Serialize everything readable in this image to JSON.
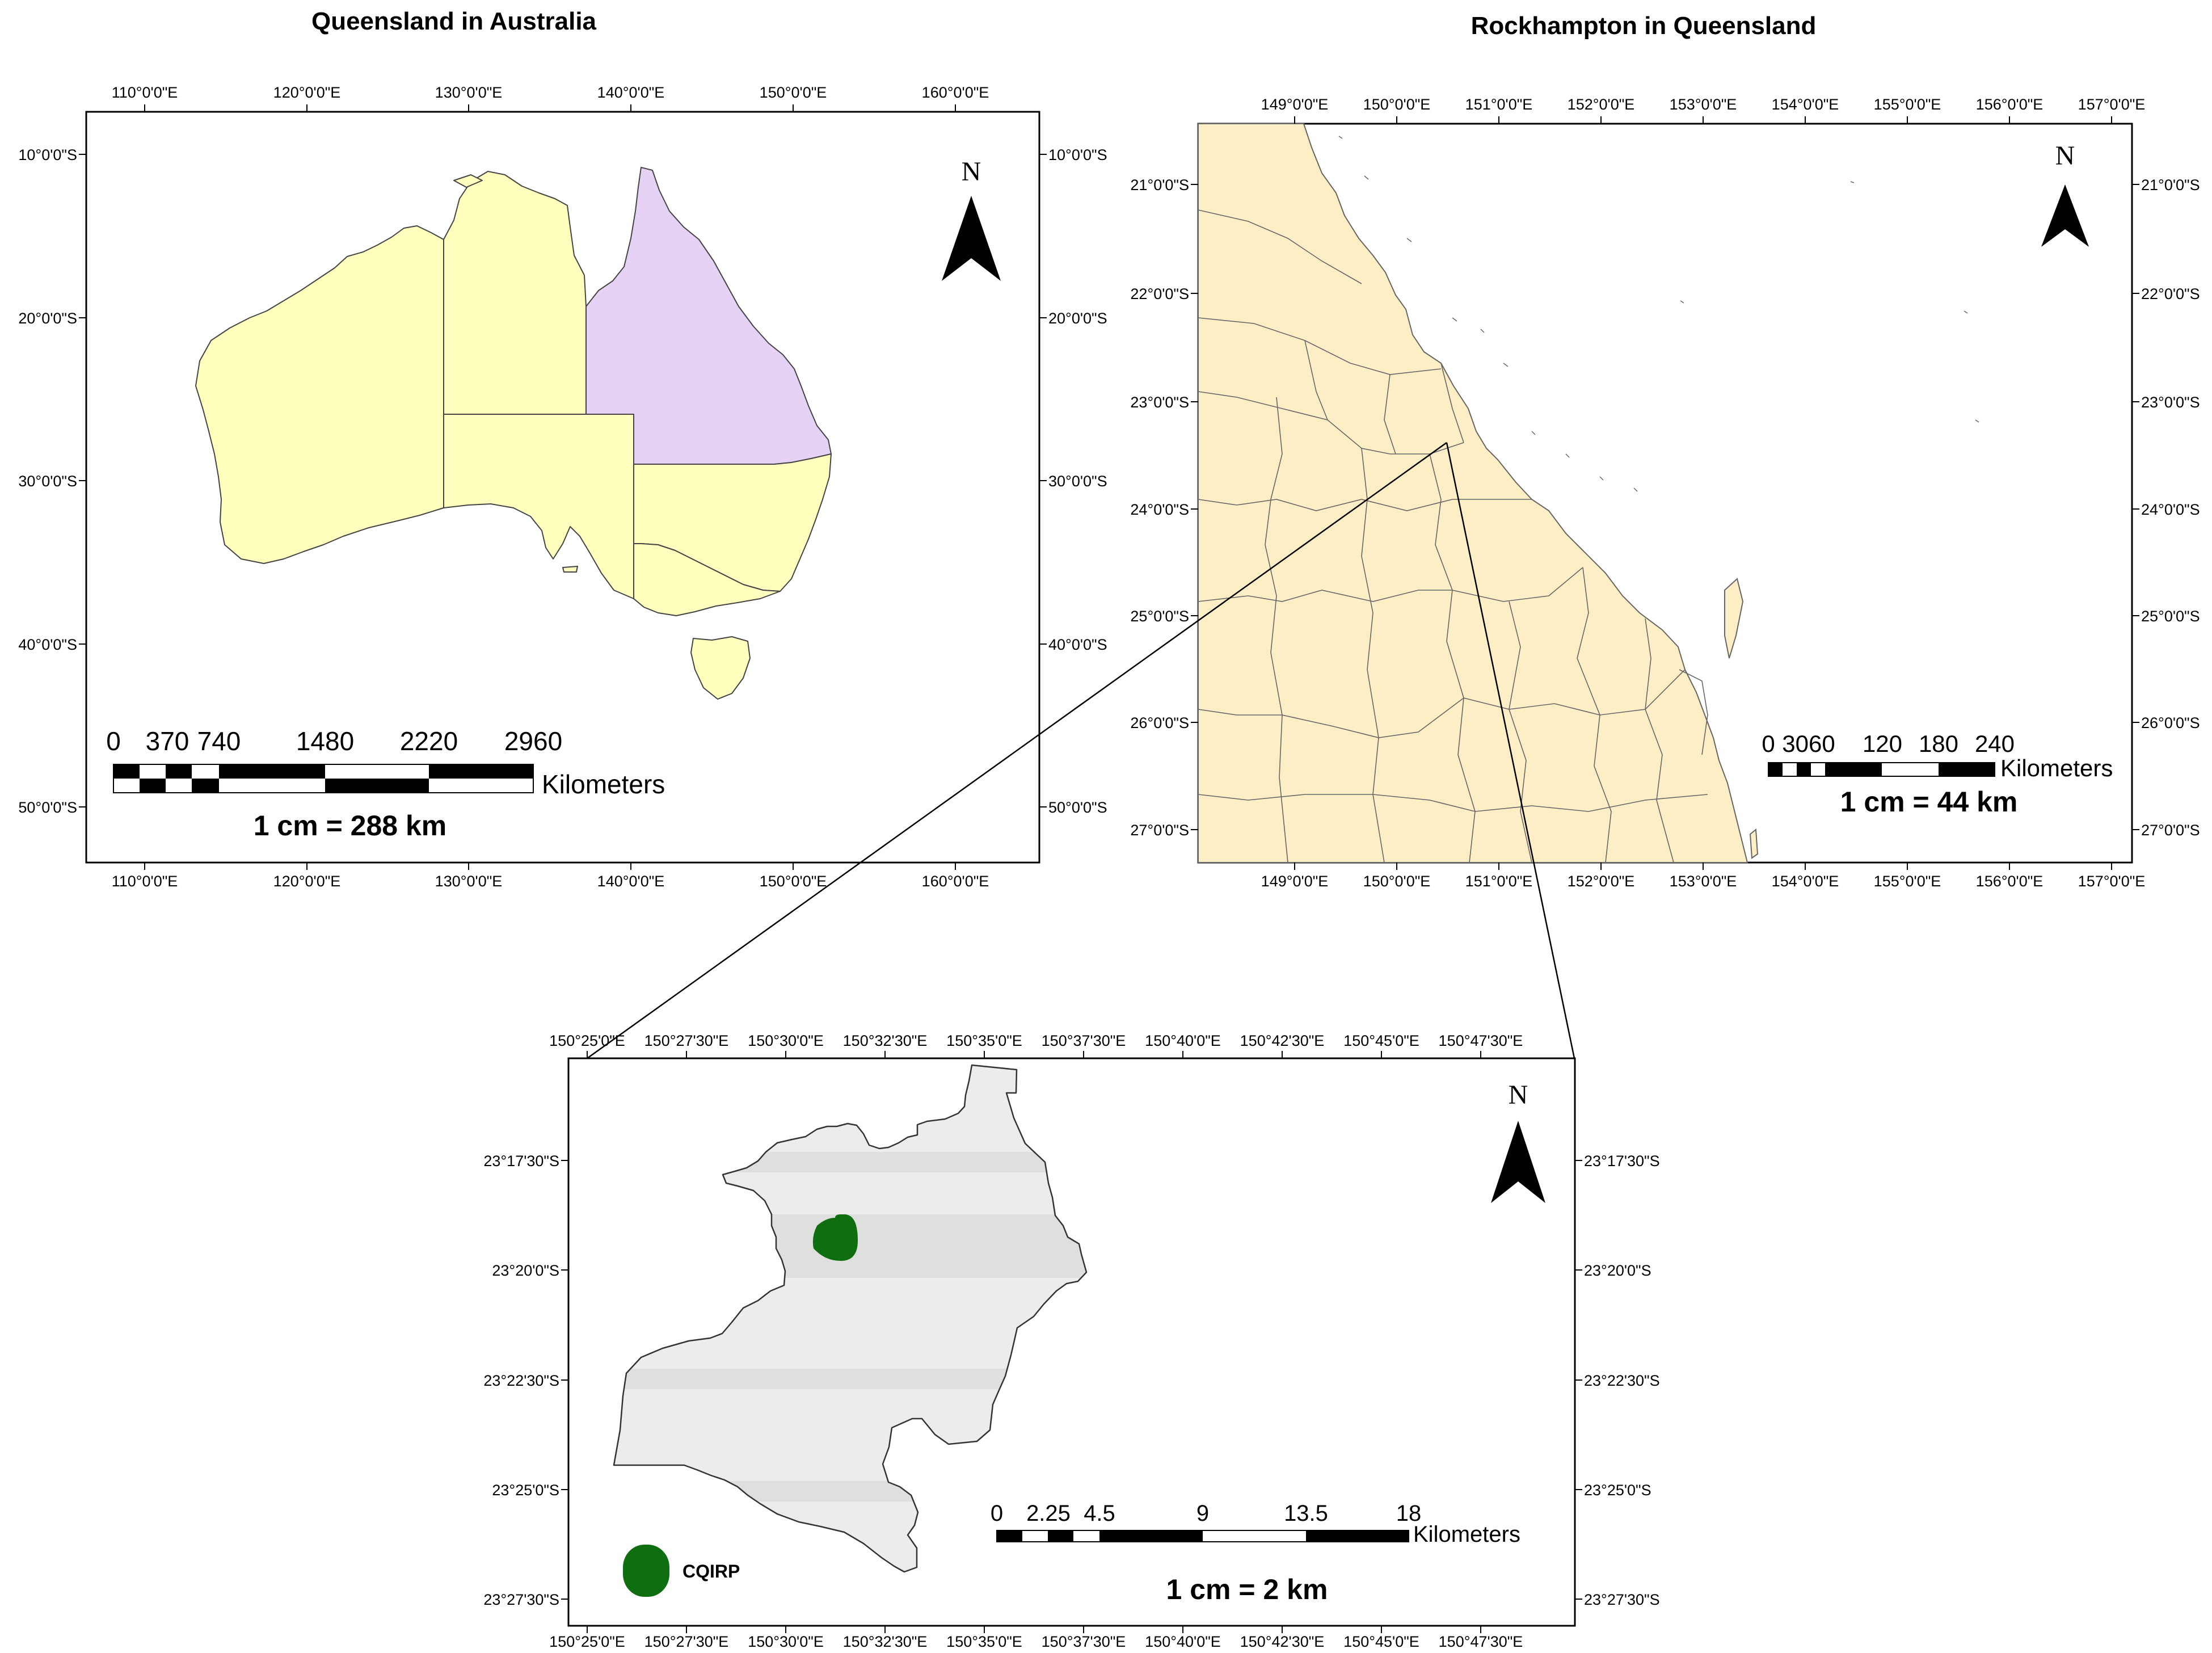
{
  "colors": {
    "australia_states": "#ffffbe",
    "queensland_highlight": "#e6d2f5",
    "queensland_lgas": "#fdeec6",
    "rockhampton_region": "#ececec",
    "rockhampton_band": "#dfdfdf",
    "cqirp_marker": "#0f6e0f",
    "frame": "#000000",
    "boundary": "#555555"
  },
  "map_australia": {
    "title": "Queensland in Australia",
    "lon_ticks": [
      "110°0'0\"E",
      "120°0'0\"E",
      "130°0'0\"E",
      "140°0'0\"E",
      "150°0'0\"E",
      "160°0'0\"E"
    ],
    "lat_ticks": [
      "10°0'0\"S",
      "20°0'0\"S",
      "30°0'0\"S",
      "40°0'0\"S",
      "50°0'0\"S"
    ],
    "north_label": "N",
    "scale_numbers": [
      "0",
      "370",
      "740",
      "1480",
      "2220",
      "2960"
    ],
    "scale_unit": "Kilometers",
    "scale_ratio": "1 cm = 288 km"
  },
  "map_queensland": {
    "title": "Rockhampton in Queensland",
    "lon_ticks": [
      "149°0'0\"E",
      "150°0'0\"E",
      "151°0'0\"E",
      "152°0'0\"E",
      "153°0'0\"E",
      "154°0'0\"E",
      "155°0'0\"E",
      "156°0'0\"E",
      "157°0'0\"E"
    ],
    "lat_ticks": [
      "21°0'0\"S",
      "22°0'0\"S",
      "23°0'0\"S",
      "24°0'0\"S",
      "25°0'0\"S",
      "26°0'0\"S",
      "27°0'0\"S"
    ],
    "north_label": "N",
    "scale_numbers": [
      "0",
      "3060",
      "120",
      "180",
      "240"
    ],
    "scale_unit": "Kilometers",
    "scale_ratio": "1 cm = 44 km"
  },
  "map_rockhampton": {
    "lon_ticks": [
      "150°25'0\"E",
      "150°27'30\"E",
      "150°30'0\"E",
      "150°32'30\"E",
      "150°35'0\"E",
      "150°37'30\"E",
      "150°40'0\"E",
      "150°42'30\"E",
      "150°45'0\"E",
      "150°47'30\"E"
    ],
    "lat_ticks": [
      "23°17'30\"S",
      "23°20'0\"S",
      "23°22'30\"S",
      "23°25'0\"S",
      "23°27'30\"S"
    ],
    "north_label": "N",
    "scale_numbers": [
      "0",
      "2.25",
      "4.5",
      "9",
      "13.5",
      "18"
    ],
    "scale_unit": "Kilometers",
    "scale_ratio": "1 cm = 2 km",
    "legend": [
      {
        "label": "CQIRP",
        "symbol": "green-filled-circle"
      }
    ]
  }
}
